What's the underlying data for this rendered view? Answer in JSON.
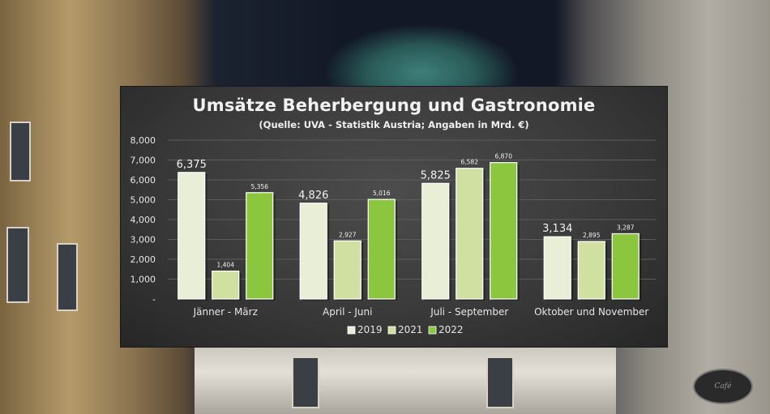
{
  "chart_data": {
    "type": "bar",
    "title": "Umsätze Beherbergung  und Gastronomie",
    "subtitle": "(Quelle: UVA - Statistik Austria; Angaben in Mrd. €)",
    "categories": [
      "Jänner - März",
      "April - Juni",
      "Juli - September",
      "Oktober und November"
    ],
    "series": [
      {
        "name": "2019",
        "values": [
          6.375,
          4.826,
          5.825,
          3.134
        ],
        "labels": [
          "6,375",
          "4,826",
          "5,825",
          "3,134"
        ],
        "color": "#e8efd6"
      },
      {
        "name": "2021",
        "values": [
          1.404,
          2.927,
          6.582,
          2.895
        ],
        "labels": [
          "1,404",
          "2,927",
          "6,582",
          "2,895"
        ],
        "color": "#cfe0a0"
      },
      {
        "name": "2022",
        "values": [
          5.356,
          5.016,
          6.87,
          3.287
        ],
        "labels": [
          "5,356",
          "5,016",
          "6,870",
          "3,287"
        ],
        "color": "#8cc63e"
      }
    ],
    "y_ticks": [
      "-",
      "1,000",
      "2,000",
      "3,000",
      "4,000",
      "5,000",
      "6,000",
      "7,000",
      "8,000"
    ],
    "ylim": [
      0,
      8
    ],
    "xlabel": "",
    "ylabel": "",
    "grid": true,
    "legend_position": "bottom"
  },
  "background": {
    "sign_text": "Café"
  }
}
